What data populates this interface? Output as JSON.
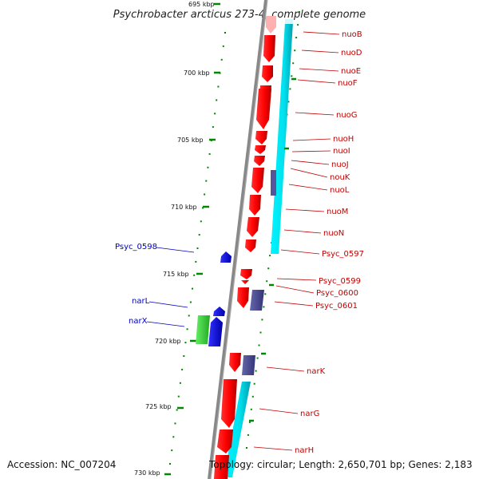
{
  "title": "Psychrobacter arcticus 273-4, complete genome",
  "accession": "Accession: NC_007204",
  "topology": "Topology: circular; Length: 2,650,701 bp; Genes: 2,183",
  "colors": {
    "gene_red": "#ff0000",
    "gene_blue": "#0000ff",
    "gene_green": "#33cc33",
    "gene_purple": "#555599",
    "cog_cyan": "#00e5ee",
    "label_red": "#c00000",
    "label_blue": "#0000c0",
    "tick_green": "#008800",
    "backbone": "#888888"
  },
  "kbp_labels": [
    {
      "text": "695 kbp",
      "kb": 695
    },
    {
      "text": "700 kbp",
      "kb": 700
    },
    {
      "text": "705 kbp",
      "kb": 705
    },
    {
      "text": "710 kbp",
      "kb": 710
    },
    {
      "text": "715 kbp",
      "kb": 715
    },
    {
      "text": "720 kbp",
      "kb": 720
    },
    {
      "text": "725 kbp",
      "kb": 725
    },
    {
      "text": "730 kbp",
      "kb": 730
    }
  ],
  "right_labels": [
    "nuoB",
    "nuoD",
    "nuoE",
    "nuoF",
    "nuoG",
    "nuoH",
    "nuoI",
    "nuoJ",
    "nouK",
    "nuoL",
    "nuoM",
    "nuoN",
    "Psyc_0597",
    "Psyc_0599",
    "Psyc_0600",
    "Psyc_0601",
    "narK",
    "narG",
    "narH"
  ],
  "left_labels": [
    "Psyc_0598",
    "narL",
    "narX"
  ]
}
